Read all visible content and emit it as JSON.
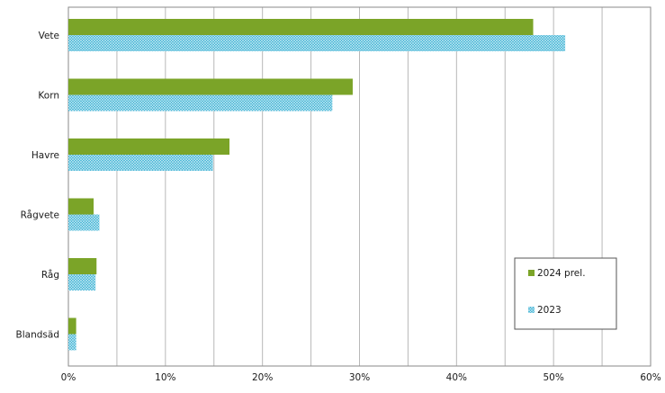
{
  "chart_data": {
    "type": "bar",
    "orientation": "horizontal",
    "categories": [
      "Vete",
      "Korn",
      "Havre",
      "Rågvete",
      "Råg",
      "Blandsäd"
    ],
    "series": [
      {
        "name": "2024 prel.",
        "color": "#7ba428",
        "pattern": "solid",
        "values": [
          47.9,
          29.3,
          16.6,
          2.6,
          2.9,
          0.8
        ]
      },
      {
        "name": "2023",
        "color": "#3fb3d4",
        "pattern": "crosshatch",
        "values": [
          51.2,
          27.2,
          14.9,
          3.2,
          2.8,
          0.8
        ]
      }
    ],
    "xlim": [
      0,
      60
    ],
    "x_ticks": [
      "0%",
      "10%",
      "20%",
      "30%",
      "40%",
      "50%",
      "60%"
    ],
    "tick_values": [
      0,
      10,
      20,
      30,
      40,
      50,
      60
    ],
    "gridlines": "vertical every 5%",
    "legend_position": "bottom-right",
    "title": "",
    "xlabel": "",
    "ylabel": ""
  }
}
